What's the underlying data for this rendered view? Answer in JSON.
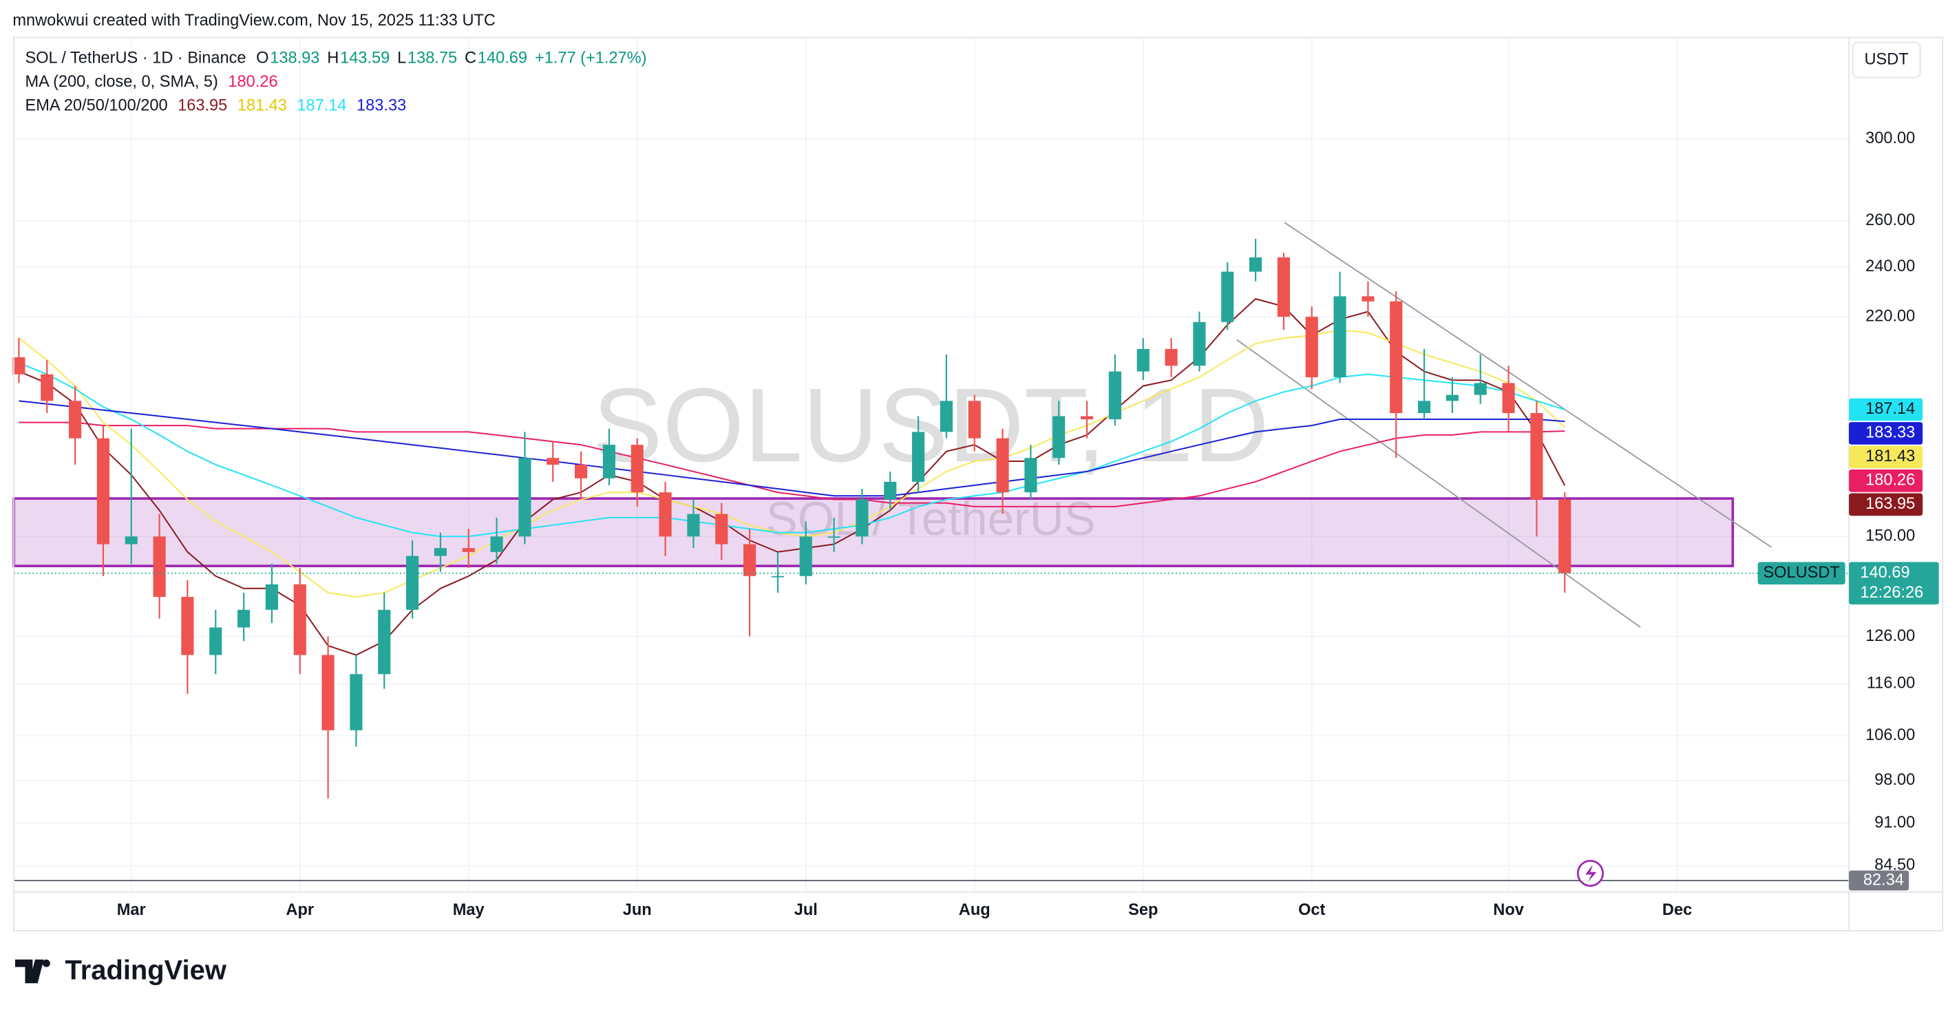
{
  "header": {
    "attribution": "mnwokwui created with TradingView.com, Nov 15, 2025 11:33 UTC",
    "symbol": "SOL / TetherUS · 1D · Binance",
    "ohlc": [
      {
        "label": "O",
        "value": "138.93"
      },
      {
        "label": "H",
        "value": "143.59"
      },
      {
        "label": "L",
        "value": "138.75"
      },
      {
        "label": "C",
        "value": "140.69"
      }
    ],
    "change": "+1.77 (+1.27%)",
    "ma_legend": "MA (200, close, 0, SMA, 5)",
    "ema_legend": "EMA 20/50/100/200",
    "currency": "USDT"
  },
  "chart_data": {
    "type": "candlestick",
    "watermark": "SOLUSDT, 1D",
    "watermark_sub": "SOL / TetherUS",
    "categories": [
      null,
      null,
      null,
      null,
      "Mar",
      null,
      null,
      null,
      null,
      null,
      "Apr",
      null,
      null,
      null,
      null,
      null,
      "May",
      null,
      null,
      null,
      null,
      null,
      "Jun",
      null,
      null,
      null,
      null,
      null,
      "Jul",
      null,
      null,
      null,
      null,
      null,
      "Aug",
      null,
      null,
      null,
      null,
      null,
      "Sep",
      null,
      null,
      null,
      null,
      null,
      "Oct",
      null,
      null,
      null,
      null,
      null,
      null,
      "Nov",
      null,
      null,
      null,
      null,
      null,
      "Dec",
      null,
      null,
      null,
      null,
      null
    ],
    "open": [
      205,
      199,
      190,
      178,
      148,
      150,
      135,
      122,
      128,
      132,
      138,
      122,
      107,
      118,
      132,
      145,
      147,
      146,
      150,
      172,
      170,
      166,
      176,
      162,
      150,
      156,
      148,
      140,
      140,
      150,
      150,
      160,
      165,
      180,
      190,
      178,
      162,
      172,
      185,
      184,
      200,
      208,
      202,
      218,
      238,
      244,
      220,
      198,
      228,
      226,
      186,
      190,
      192,
      196,
      186,
      160,
      null,
      null,
      null,
      null,
      null,
      null,
      null,
      null,
      null
    ],
    "high": [
      212,
      204,
      195,
      182,
      181,
      156,
      139,
      132,
      136,
      143,
      142,
      126,
      122,
      136,
      149,
      151,
      152,
      155,
      180,
      177,
      174,
      181,
      178,
      165,
      160,
      159,
      152,
      146,
      154,
      155,
      163,
      168,
      185,
      206,
      192,
      181,
      176,
      190,
      190,
      206,
      212,
      212,
      222,
      242,
      252,
      246,
      224,
      238,
      234,
      230,
      208,
      198,
      206,
      202,
      190,
      162,
      null,
      null,
      null,
      null,
      null,
      null,
      null,
      null,
      null
    ],
    "low": [
      196,
      186,
      170,
      140,
      143,
      130,
      114,
      118,
      125,
      129,
      118,
      95,
      104,
      115,
      130,
      141,
      142,
      143,
      148,
      165,
      160,
      164,
      158,
      145,
      147,
      144,
      126,
      136,
      138,
      146,
      148,
      157,
      162,
      178,
      174,
      156,
      160,
      170,
      178,
      182,
      197,
      198,
      200,
      215,
      234,
      215,
      194,
      196,
      220,
      172,
      184,
      186,
      189,
      180,
      150,
      136,
      null,
      null,
      null,
      null,
      null,
      null,
      null,
      null,
      null
    ],
    "close": [
      199,
      190,
      178,
      148,
      150,
      135,
      122,
      128,
      132,
      138,
      122,
      107,
      118,
      132,
      145,
      147,
      146,
      150,
      172,
      170,
      166,
      176,
      162,
      150,
      156,
      148,
      140,
      140,
      150,
      150,
      160,
      165,
      180,
      190,
      178,
      162,
      172,
      185,
      184,
      200,
      208,
      202,
      218,
      238,
      244,
      220,
      198,
      228,
      226,
      186,
      190,
      192,
      196,
      186,
      160,
      140.69,
      null,
      null,
      null,
      null,
      null,
      null,
      null,
      null,
      null
    ],
    "up_color": "#26a69a",
    "down_color": "#ef5350",
    "log_scale": true,
    "grid": true,
    "ylim": [
      82.3,
      358
    ],
    "yticks": [
      {
        "value": 300,
        "label": "300.00"
      },
      {
        "value": 260,
        "label": "260.00"
      },
      {
        "value": 240,
        "label": "240.00"
      },
      {
        "value": 220,
        "label": "220.00"
      },
      {
        "value": 150,
        "label": "150.00"
      },
      {
        "value": 126,
        "label": "126.00"
      },
      {
        "value": 116,
        "label": "116.00"
      },
      {
        "value": 106,
        "label": "106.00"
      },
      {
        "value": 98,
        "label": "98.00"
      },
      {
        "value": 91,
        "label": "91.00"
      },
      {
        "value": 84.5,
        "label": "84.50"
      }
    ],
    "series": [
      {
        "color": "#e91e63",
        "values": [
          183,
          183,
          183,
          182,
          182,
          182,
          182,
          181,
          181,
          181,
          181,
          181,
          180,
          180,
          180,
          180,
          180,
          179,
          178,
          177,
          176,
          174,
          172,
          170,
          168,
          166,
          164,
          162,
          161,
          160,
          160,
          159,
          159,
          159,
          158,
          158,
          158,
          158,
          158,
          158,
          159,
          160,
          161,
          163,
          165,
          168,
          171,
          174,
          176,
          178,
          179,
          179,
          180,
          180,
          180,
          180.26,
          null,
          null,
          null,
          null,
          null,
          null,
          null,
          null,
          null
        ]
      },
      {
        "color": "#8b1a1f",
        "values": [
          200,
          196,
          189,
          175,
          167,
          157,
          146,
          140,
          137,
          137,
          133,
          124,
          122,
          125,
          132,
          137,
          140,
          144,
          154,
          160,
          162,
          167,
          165,
          160,
          158,
          154,
          149,
          146,
          147,
          148,
          152,
          157,
          165,
          174,
          176,
          171,
          171,
          176,
          179,
          187,
          195,
          197,
          205,
          217,
          227,
          224,
          213,
          219,
          222,
          207,
          200,
          197,
          197,
          193,
          180,
          163.95,
          null,
          null,
          null,
          null,
          null,
          null,
          null,
          null,
          null
        ]
      },
      {
        "color": "#f7e85a",
        "values": [
          212,
          204,
          195,
          183,
          176,
          168,
          160,
          154,
          150,
          146,
          141,
          136,
          135,
          136,
          139,
          142,
          145,
          149,
          153,
          157,
          160,
          162,
          162,
          160,
          158,
          156,
          153,
          151,
          150,
          151,
          154,
          158,
          163,
          168,
          171,
          172,
          175,
          179,
          182,
          186,
          190,
          194,
          198,
          204,
          210,
          212,
          213,
          215,
          214,
          210,
          206,
          203,
          200,
          196,
          190,
          181.43,
          null,
          null,
          null,
          null,
          null,
          null,
          null,
          null,
          null
        ]
      },
      {
        "color": "#22e3f5",
        "values": [
          203,
          199,
          194,
          188,
          184,
          179,
          174,
          170,
          167,
          164,
          161,
          158,
          155,
          153,
          151,
          150,
          150,
          151,
          152,
          153,
          154,
          155,
          155,
          155,
          154,
          153,
          152,
          151,
          151,
          152,
          153,
          155,
          158,
          160,
          161,
          162,
          164,
          166,
          168,
          171,
          174,
          177,
          181,
          186,
          190,
          193,
          195,
          198,
          199,
          198,
          197,
          196,
          195,
          193,
          190,
          187.14,
          null,
          null,
          null,
          null,
          null,
          null,
          null,
          null,
          null
        ]
      },
      {
        "color": "#1a1fd6",
        "values": [
          190,
          189,
          188,
          187,
          186,
          185,
          184,
          183,
          182,
          181,
          180,
          179,
          178,
          177,
          176,
          175,
          174,
          173,
          172,
          171,
          170,
          169,
          168,
          167,
          166,
          165,
          164,
          163,
          162,
          161,
          161,
          161,
          162,
          163,
          164,
          165,
          166,
          167,
          168,
          170,
          172,
          174,
          176,
          178,
          180,
          181,
          182,
          184,
          184,
          184,
          184,
          184,
          184,
          184,
          184,
          183.33,
          null,
          null,
          null,
          null,
          null,
          null,
          null,
          null,
          null
        ]
      }
    ],
    "symbol_label": "SOLUSDT",
    "countdown": "12:26:26",
    "indicator_value": 82.34
  },
  "footer": {
    "brand": "TradingView"
  }
}
